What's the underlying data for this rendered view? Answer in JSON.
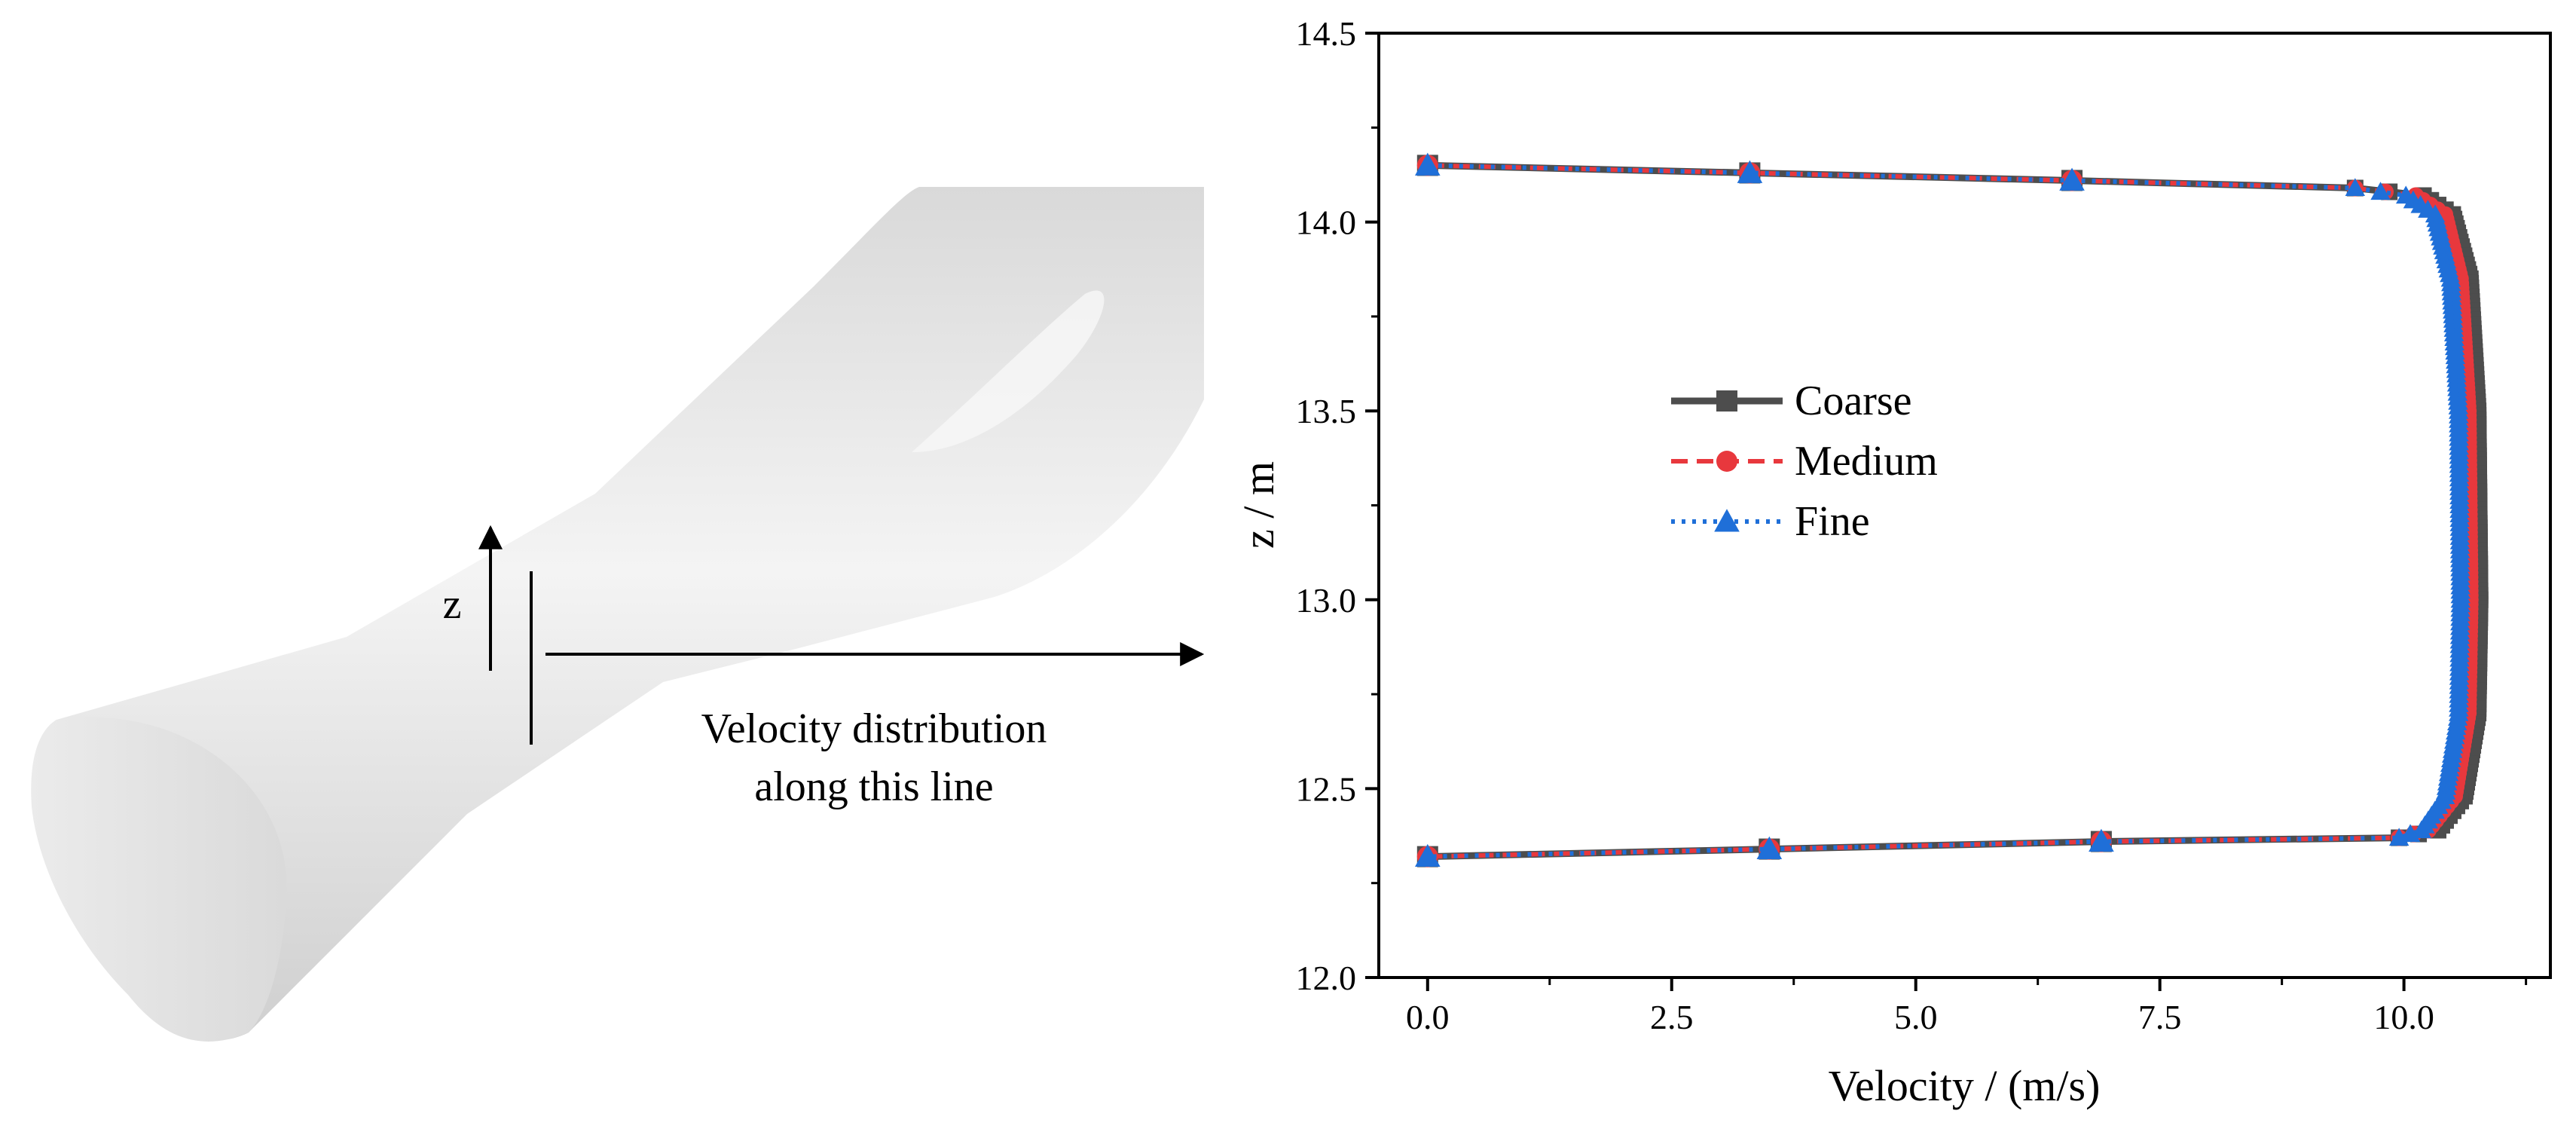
{
  "schematic": {
    "axis_label": "z",
    "annotation_line1": "Velocity distribution",
    "annotation_line2": "along this line",
    "body_color": "#e6e6e6"
  },
  "chart_data": {
    "type": "line",
    "title": "",
    "xlabel": "Velocity / (m/s)",
    "ylabel": "z / m",
    "xlim": [
      -0.5,
      11.5
    ],
    "ylim": [
      12.0,
      14.5
    ],
    "xticks": [
      0.0,
      2.5,
      5.0,
      7.5,
      10.0
    ],
    "xtick_labels": [
      "0.0",
      "2.5",
      "5.0",
      "7.5",
      "10.0"
    ],
    "yticks": [
      12.0,
      12.5,
      13.0,
      13.5,
      14.0,
      14.5
    ],
    "ytick_labels": [
      "12.0",
      "12.5",
      "13.0",
      "13.5",
      "14.0",
      "14.5"
    ],
    "grid": false,
    "legend_position": "center-left",
    "series": [
      {
        "name": "Coarse",
        "color": "#4d4d4d",
        "marker": "square",
        "dash": "solid",
        "profile": [
          [
            0,
            14.15
          ],
          [
            3.3,
            14.13
          ],
          [
            6.6,
            14.11
          ],
          [
            9.5,
            14.09
          ],
          [
            10.2,
            14.07
          ],
          [
            10.5,
            14.02
          ],
          [
            10.68,
            13.85
          ],
          [
            10.76,
            13.5
          ],
          [
            10.78,
            13.0
          ],
          [
            10.76,
            12.7
          ],
          [
            10.62,
            12.48
          ],
          [
            10.35,
            12.39
          ],
          [
            9.95,
            12.37
          ],
          [
            6.9,
            12.36
          ],
          [
            3.5,
            12.34
          ],
          [
            0,
            12.32
          ]
        ],
        "markers": [
          [
            0,
            14.15
          ],
          [
            3.3,
            14.13
          ],
          [
            6.6,
            14.11
          ],
          [
            0,
            12.32
          ],
          [
            3.5,
            12.34
          ],
          [
            6.9,
            12.36
          ]
        ]
      },
      {
        "name": "Medium",
        "color": "#e8383d",
        "marker": "circle",
        "dash": "dashed",
        "profile": [
          [
            0,
            14.15
          ],
          [
            3.3,
            14.13
          ],
          [
            6.6,
            14.11
          ],
          [
            9.5,
            14.09
          ],
          [
            10.12,
            14.07
          ],
          [
            10.42,
            14.02
          ],
          [
            10.58,
            13.85
          ],
          [
            10.66,
            13.5
          ],
          [
            10.68,
            13.0
          ],
          [
            10.66,
            12.7
          ],
          [
            10.52,
            12.48
          ],
          [
            10.25,
            12.39
          ],
          [
            9.95,
            12.37
          ],
          [
            6.9,
            12.36
          ],
          [
            3.5,
            12.34
          ],
          [
            0,
            12.32
          ]
        ],
        "markers": [
          [
            0,
            14.15
          ],
          [
            3.3,
            14.13
          ],
          [
            6.6,
            14.11
          ],
          [
            0,
            12.32
          ],
          [
            3.5,
            12.34
          ],
          [
            6.9,
            12.36
          ]
        ]
      },
      {
        "name": "Fine",
        "color": "#1f6fd8",
        "marker": "triangle",
        "dash": "dotted",
        "profile": [
          [
            0,
            14.15
          ],
          [
            3.3,
            14.13
          ],
          [
            6.6,
            14.11
          ],
          [
            9.5,
            14.09
          ],
          [
            10.02,
            14.07
          ],
          [
            10.32,
            14.02
          ],
          [
            10.48,
            13.85
          ],
          [
            10.56,
            13.5
          ],
          [
            10.58,
            13.0
          ],
          [
            10.56,
            12.7
          ],
          [
            10.42,
            12.48
          ],
          [
            10.18,
            12.39
          ],
          [
            9.95,
            12.37
          ],
          [
            6.9,
            12.36
          ],
          [
            3.5,
            12.34
          ],
          [
            0,
            12.32
          ]
        ],
        "markers": [
          [
            0,
            14.15
          ],
          [
            3.3,
            14.13
          ],
          [
            6.6,
            14.11
          ],
          [
            0,
            12.32
          ],
          [
            3.5,
            12.34
          ],
          [
            6.9,
            12.36
          ]
        ]
      }
    ]
  }
}
